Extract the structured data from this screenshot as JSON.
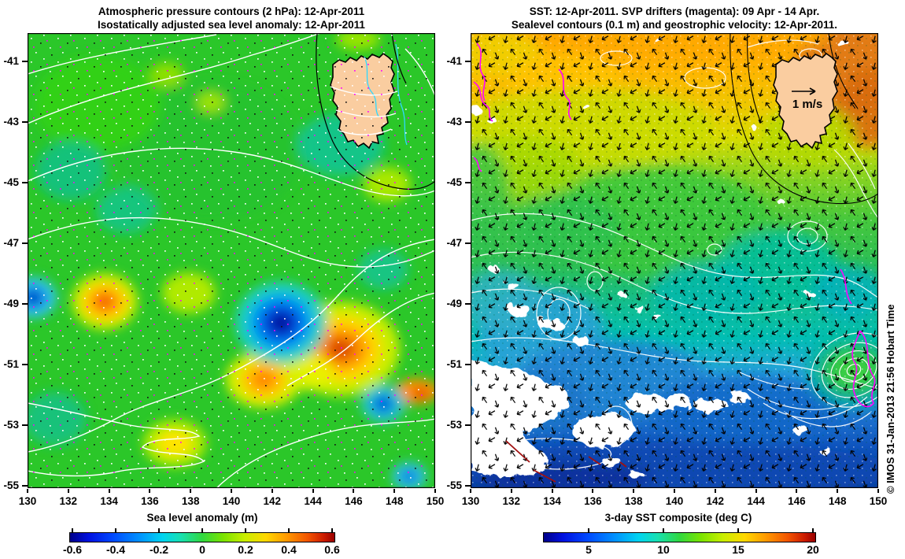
{
  "watermark": "© IMOS 31-Jan-2013 21:56 Hobart Time",
  "colors": {
    "background": "#FFFFFF",
    "land": "#FACDA0",
    "coastline": "#000000",
    "pressure_contour": "#FFFFFF",
    "sealevel_contour": "#FFFFFF",
    "drifter_track": "#FF00FF",
    "velocity_arrow": "#000000",
    "river_line": "#2FD8FF",
    "text": "#000000"
  },
  "chart_data": [
    {
      "type": "heatmap",
      "panel": "left",
      "title": "Atmospheric pressure contours (2 hPa): 12-Apr-2011",
      "subtitle": "Isostatically adjusted sea level anomaly: 12-Apr-2011",
      "x_ticks": [
        130,
        132,
        134,
        136,
        138,
        140,
        142,
        144,
        146,
        148,
        150
      ],
      "y_ticks": [
        -41,
        -43,
        -45,
        -47,
        -49,
        -51,
        -53,
        -55
      ],
      "x_range": [
        130,
        150
      ],
      "y_range": [
        -55.4,
        -40.1
      ],
      "grid": false,
      "colorbar": {
        "label": "Sea level anomaly (m)",
        "ticks": [
          -0.6,
          -0.4,
          -0.2,
          0,
          0.2,
          0.4,
          0.6
        ],
        "range": [
          -0.62,
          0.62
        ],
        "colormap": "jet"
      },
      "field": "sea level anomaly (m)",
      "background_value_m": 0.0,
      "anomaly_centers": [
        {
          "lon": 142.4,
          "lat": -49.6,
          "value_m": -0.55
        },
        {
          "lon": 145.4,
          "lat": -50.5,
          "value_m": 0.5
        },
        {
          "lon": 141.6,
          "lat": -51.5,
          "value_m": 0.35
        },
        {
          "lon": 133.8,
          "lat": -48.9,
          "value_m": 0.4
        },
        {
          "lon": 130.3,
          "lat": -48.8,
          "value_m": -0.4
        },
        {
          "lon": 147.5,
          "lat": -52.3,
          "value_m": -0.3
        },
        {
          "lon": 148.7,
          "lat": -54.7,
          "value_m": -0.25
        },
        {
          "lon": 137.9,
          "lat": -48.6,
          "value_m": 0.2
        },
        {
          "lon": 137.3,
          "lat": -53.5,
          "value_m": 0.25
        },
        {
          "lon": 147.6,
          "lat": -45.1,
          "value_m": 0.15
        }
      ],
      "overlays": [
        "white atmospheric pressure contours at 2 hPa interval",
        "scattered dots (white, black, magenta) over whole field",
        "Tasmania landmass upper right, tan fill with black coastline and cyan river lines"
      ]
    },
    {
      "type": "heatmap",
      "panel": "right",
      "title": "SST: 12-Apr-2011. SVP drifters (magenta): 09 Apr - 14 Apr.",
      "subtitle": "Sealevel contours (0.1 m) and geostrophic velocity: 12-Apr-2011.",
      "x_ticks": [
        130,
        132,
        134,
        136,
        138,
        140,
        142,
        144,
        146,
        148,
        150
      ],
      "y_ticks": [
        -41,
        -43,
        -45,
        -47,
        -49,
        -51,
        -53,
        -55
      ],
      "x_range": [
        130,
        150
      ],
      "y_range": [
        -55.4,
        -40.1
      ],
      "grid": false,
      "colorbar": {
        "label": "3-day SST composite (deg C)",
        "ticks": [
          5,
          10,
          15,
          20
        ],
        "range": [
          2,
          20
        ],
        "colormap": "jet"
      },
      "field": "3-day SST composite (deg C)",
      "sst_by_latitude": [
        {
          "lat": -41,
          "sst_c": 17.5
        },
        {
          "lat": -43,
          "sst_c": 15.5
        },
        {
          "lat": -45,
          "sst_c": 13.5
        },
        {
          "lat": -47,
          "sst_c": 12.5
        },
        {
          "lat": -49,
          "sst_c": 11
        },
        {
          "lat": -51,
          "sst_c": 9
        },
        {
          "lat": -53,
          "sst_c": 7
        },
        {
          "lat": -55,
          "sst_c": 5.5
        }
      ],
      "reference_vector": {
        "label": "1 m/s"
      },
      "overlays": [
        "white sea level contours (0.1 m interval) with multiple eddies",
        "black geostrophic velocity arrow field",
        "magenta SVP drifter tracks (upper left coast and warm eddy near 149E 52S)",
        "white cloud gaps in SST composite (largest lower left)",
        "reference arrow 1 m/s drawn over Tasmania land"
      ]
    }
  ]
}
